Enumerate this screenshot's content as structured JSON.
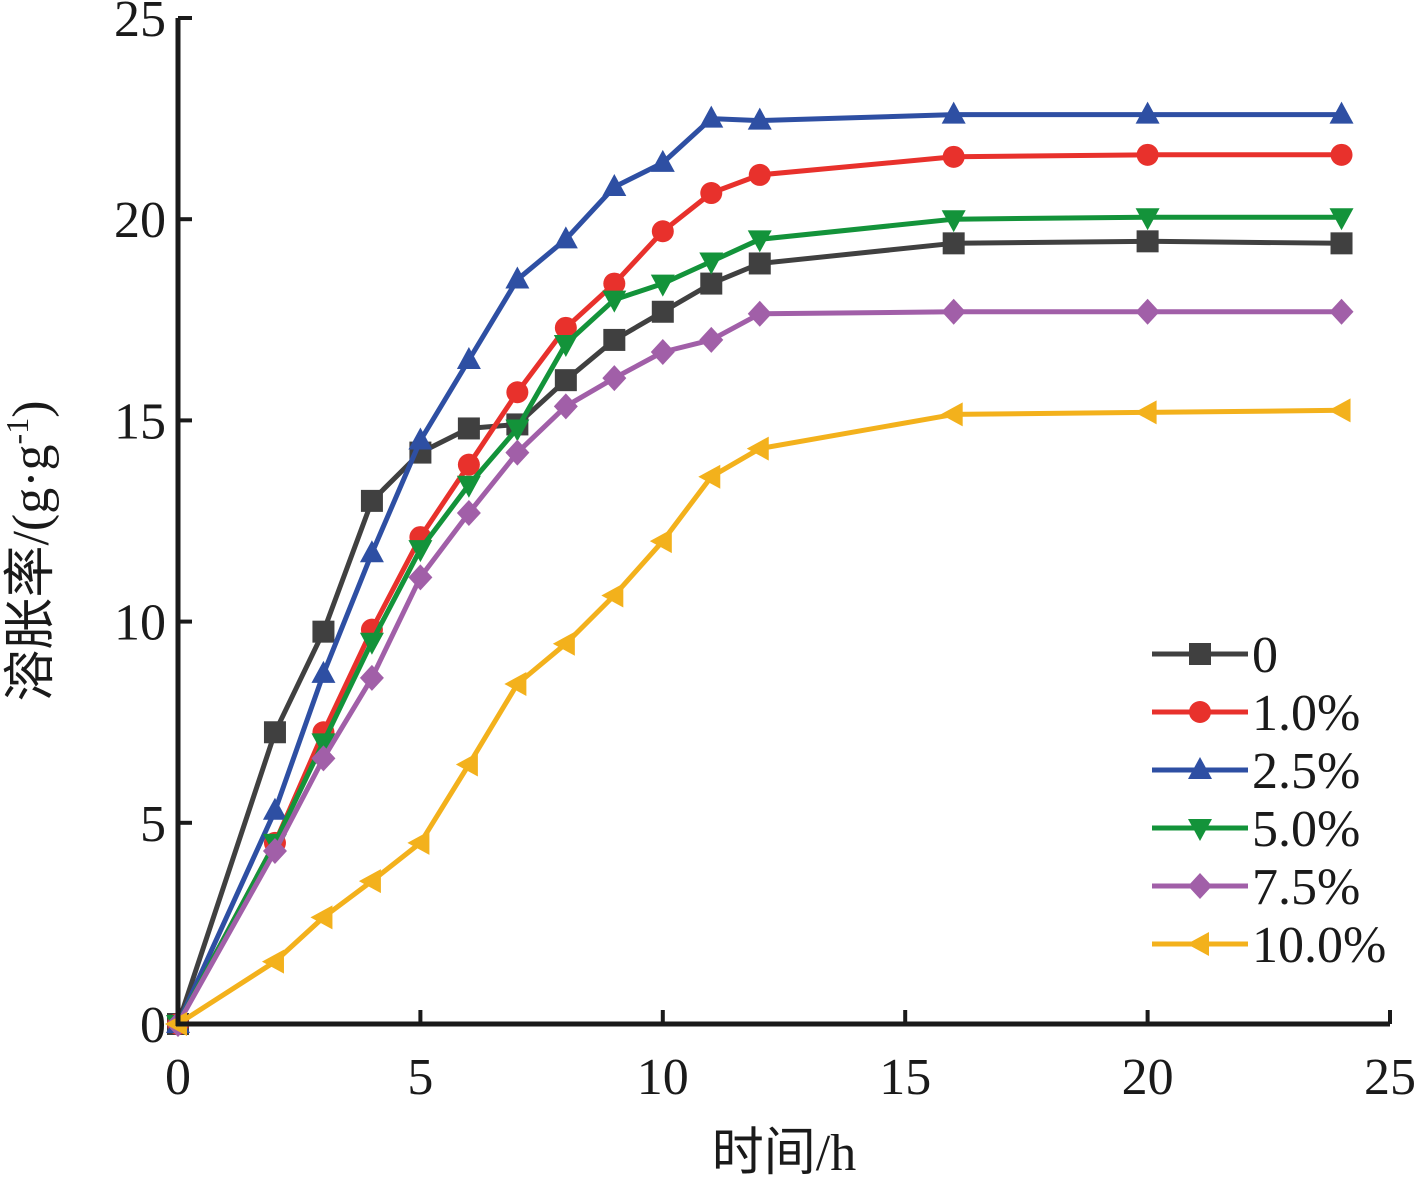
{
  "chart_data": {
    "type": "line",
    "xlabel": "时间/h",
    "ylabel": "溶胀率/(g·g",
    "ylabel_sup": "-1",
    "ylabel_close": ")",
    "xlim": [
      0,
      25
    ],
    "ylim": [
      0,
      25
    ],
    "xticks": [
      "0",
      "5",
      "10",
      "15",
      "20",
      "25"
    ],
    "yticks": [
      "0",
      "5",
      "10",
      "15",
      "20",
      "25"
    ],
    "grid": false,
    "legend_position": "bottom-right",
    "series": [
      {
        "name": "0",
        "color": "#404040",
        "marker": "square",
        "points": [
          [
            0,
            0
          ],
          [
            2,
            7.25
          ],
          [
            3,
            9.75
          ],
          [
            4,
            13.0
          ],
          [
            5,
            14.2
          ],
          [
            6,
            14.8
          ],
          [
            7,
            14.9
          ],
          [
            8,
            16.0
          ],
          [
            9,
            17.0
          ],
          [
            10,
            17.7
          ],
          [
            11,
            18.4
          ],
          [
            12,
            18.9
          ],
          [
            16,
            19.4
          ],
          [
            20,
            19.45
          ],
          [
            24,
            19.4
          ]
        ]
      },
      {
        "name": "1.0%",
        "color": "#e8312c",
        "marker": "circle",
        "points": [
          [
            0,
            0
          ],
          [
            2,
            4.5
          ],
          [
            3,
            7.25
          ],
          [
            4,
            9.8
          ],
          [
            5,
            12.1
          ],
          [
            6,
            13.9
          ],
          [
            7,
            15.7
          ],
          [
            8,
            17.3
          ],
          [
            9,
            18.4
          ],
          [
            10,
            19.7
          ],
          [
            11,
            20.65
          ],
          [
            12,
            21.1
          ],
          [
            16,
            21.55
          ],
          [
            20,
            21.6
          ],
          [
            24,
            21.6
          ]
        ]
      },
      {
        "name": "2.5%",
        "color": "#2e4fa3",
        "marker": "triangle-up",
        "points": [
          [
            0,
            0
          ],
          [
            2,
            5.3
          ],
          [
            3,
            8.7
          ],
          [
            4,
            11.7
          ],
          [
            5,
            14.5
          ],
          [
            6,
            16.5
          ],
          [
            7,
            18.5
          ],
          [
            8,
            19.5
          ],
          [
            9,
            20.8
          ],
          [
            10,
            21.4
          ],
          [
            11,
            22.5
          ],
          [
            12,
            22.45
          ],
          [
            16,
            22.6
          ],
          [
            20,
            22.6
          ],
          [
            24,
            22.6
          ]
        ]
      },
      {
        "name": "5.0%",
        "color": "#13933a",
        "marker": "triangle-down",
        "points": [
          [
            0,
            0
          ],
          [
            2,
            4.5
          ],
          [
            3,
            7.0
          ],
          [
            4,
            9.5
          ],
          [
            5,
            11.8
          ],
          [
            6,
            13.4
          ],
          [
            7,
            14.8
          ],
          [
            8,
            16.9
          ],
          [
            9,
            18.0
          ],
          [
            10,
            18.4
          ],
          [
            11,
            18.95
          ],
          [
            12,
            19.5
          ],
          [
            16,
            20.0
          ],
          [
            20,
            20.05
          ],
          [
            24,
            20.05
          ]
        ]
      },
      {
        "name": "7.5%",
        "color": "#a15fa8",
        "marker": "diamond",
        "points": [
          [
            0,
            0
          ],
          [
            2,
            4.3
          ],
          [
            3,
            6.6
          ],
          [
            4,
            8.6
          ],
          [
            5,
            11.1
          ],
          [
            6,
            12.7
          ],
          [
            7,
            14.2
          ],
          [
            8,
            15.35
          ],
          [
            9,
            16.05
          ],
          [
            10,
            16.7
          ],
          [
            11,
            17.0
          ],
          [
            12,
            17.65
          ],
          [
            16,
            17.7
          ],
          [
            20,
            17.7
          ],
          [
            24,
            17.7
          ]
        ]
      },
      {
        "name": "10.0%",
        "color": "#f3b11c",
        "marker": "triangle-left",
        "points": [
          [
            0,
            0
          ],
          [
            2,
            1.55
          ],
          [
            3,
            2.65
          ],
          [
            4,
            3.55
          ],
          [
            5,
            4.5
          ],
          [
            6,
            6.45
          ],
          [
            7,
            8.45
          ],
          [
            8,
            9.45
          ],
          [
            9,
            10.65
          ],
          [
            10,
            12.0
          ],
          [
            11,
            13.6
          ],
          [
            12,
            14.3
          ],
          [
            16,
            15.15
          ],
          [
            20,
            15.2
          ],
          [
            24,
            15.25
          ]
        ]
      }
    ]
  }
}
